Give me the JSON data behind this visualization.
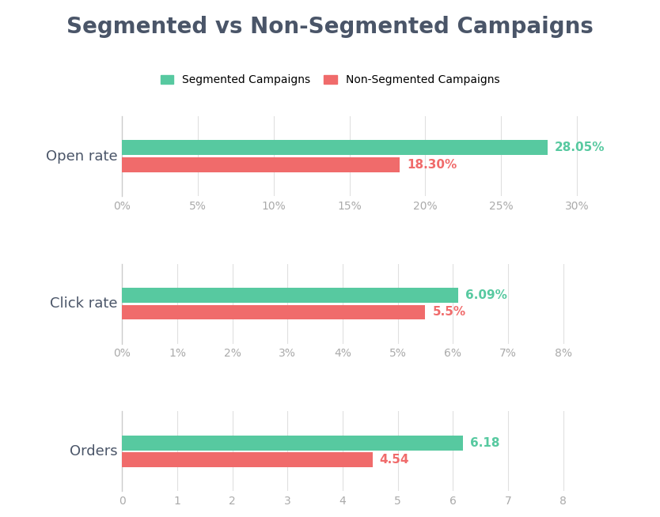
{
  "title": "Segmented vs Non-Segmented Campaigns",
  "title_fontsize": 20,
  "title_color": "#4a5568",
  "title_fontweight": "bold",
  "background_color": "#ffffff",
  "segmented_color": "#57c9a0",
  "nonsegmented_color": "#f06b6b",
  "legend_labels": [
    "Segmented Campaigns",
    "Non-Segmented Campaigns"
  ],
  "charts": [
    {
      "ylabel": "Open rate",
      "segmented_value": 28.05,
      "nonsegmented_value": 18.3,
      "segmented_label": "28.05%",
      "nonsegmented_label": "18.30%",
      "xlim": [
        0,
        32
      ],
      "xticks": [
        0,
        5,
        10,
        15,
        20,
        25,
        30
      ],
      "xticklabels": [
        "0%",
        "5%",
        "10%",
        "15%",
        "20%",
        "25%",
        "30%"
      ]
    },
    {
      "ylabel": "Click rate",
      "segmented_value": 6.09,
      "nonsegmented_value": 5.5,
      "segmented_label": "6.09%",
      "nonsegmented_label": "5.5%",
      "xlim": [
        0,
        8.8
      ],
      "xticks": [
        0,
        1,
        2,
        3,
        4,
        5,
        6,
        7,
        8
      ],
      "xticklabels": [
        "0%",
        "1%",
        "2%",
        "3%",
        "4%",
        "5%",
        "6%",
        "7%",
        "8%"
      ]
    },
    {
      "ylabel": "Orders",
      "segmented_value": 6.18,
      "nonsegmented_value": 4.54,
      "segmented_label": "6.18",
      "nonsegmented_label": "4.54",
      "xlim": [
        0,
        8.8
      ],
      "xticks": [
        0,
        1,
        2,
        3,
        4,
        5,
        6,
        7,
        8
      ],
      "xticklabels": [
        "0",
        "1",
        "2",
        "3",
        "4",
        "5",
        "6",
        "7",
        "8"
      ]
    }
  ],
  "bar_height": 0.28,
  "bar_gap": 0.32,
  "ylabel_fontsize": 13,
  "ylabel_color": "#4a5568",
  "tick_fontsize": 10,
  "tick_color": "#aaaaaa",
  "label_fontsize": 11,
  "label_fontweight": "bold",
  "gridcolor": "#e0e0e0",
  "grid_linewidth": 0.8,
  "spine_color": "#cccccc"
}
